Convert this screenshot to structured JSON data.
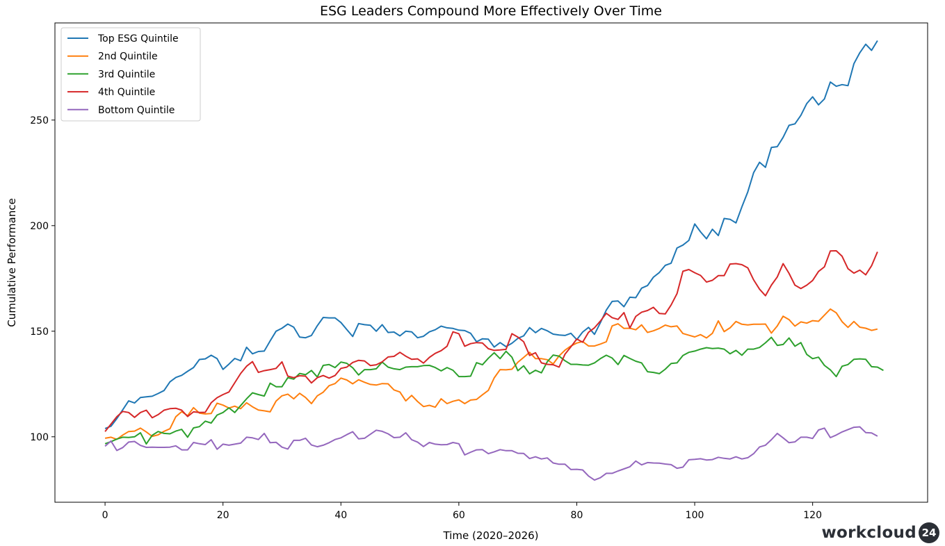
{
  "chart_data": {
    "type": "line",
    "title": "ESG Leaders Compound More Effectively Over Time",
    "xlabel": "Time (2020–2026)",
    "ylabel": "Cumulative Performance",
    "xlim": [
      -8.5,
      139.5
    ],
    "ylim": [
      69,
      296
    ],
    "xticks": [
      0,
      20,
      40,
      60,
      80,
      100,
      120
    ],
    "yticks": [
      100,
      150,
      200,
      250
    ],
    "legend_position": "top-left",
    "series": [
      {
        "name": "Top ESG Quintile",
        "color": "#1f77b4",
        "values": [
          103.9,
          105.0,
          108.6,
          112.8,
          117.0,
          116.0,
          118.6,
          118.9,
          119.2,
          120.5,
          121.9,
          126.0,
          128.1,
          129.1,
          131.0,
          132.8,
          136.6,
          136.9,
          138.6,
          137.0,
          131.9,
          134.4,
          137.1,
          136.0,
          142.4,
          139.3,
          140.4,
          140.6,
          145.4,
          150.0,
          151.4,
          153.4,
          151.9,
          147.2,
          146.9,
          148.0,
          152.6,
          156.5,
          156.3,
          156.3,
          154.1,
          150.8,
          147.5,
          153.6,
          153.1,
          152.8,
          150.0,
          153.1,
          149.4,
          149.6,
          147.8,
          150.0,
          149.7,
          146.9,
          147.6,
          149.7,
          150.7,
          152.4,
          151.6,
          151.3,
          150.5,
          150.3,
          149.0,
          145.0,
          146.4,
          146.2,
          142.5,
          144.6,
          142.7,
          144.3,
          146.6,
          147.8,
          151.7,
          149.3,
          151.3,
          150.2,
          148.6,
          148.2,
          148.0,
          149.0,
          146.0,
          149.6,
          151.8,
          148.5,
          154.0,
          160.0,
          164.1,
          164.3,
          161.6,
          166.1,
          165.9,
          170.4,
          171.6,
          175.6,
          177.8,
          181.2,
          182.2,
          189.4,
          190.8,
          193.0,
          200.8,
          197.0,
          193.8,
          198.3,
          195.3,
          203.4,
          203.0,
          201.3,
          208.9,
          216.0,
          225.1,
          230.0,
          227.6,
          237.0,
          237.4,
          241.8,
          247.5,
          248.2,
          252.2,
          257.8,
          261.0,
          257.2,
          260.0,
          268.0,
          266.0,
          266.8,
          266.3,
          276.7,
          281.9,
          285.9,
          283.0,
          287.6
        ]
      },
      {
        "name": "2nd Quintile",
        "color": "#ff7f0e",
        "values": [
          99.3,
          99.8,
          98.8,
          100.8,
          102.5,
          102.7,
          104.1,
          102.3,
          100.2,
          100.9,
          102.6,
          103.8,
          109.5,
          111.9,
          110.0,
          113.8,
          111.2,
          110.8,
          111.0,
          115.9,
          115.0,
          113.6,
          114.5,
          113.3,
          116.1,
          114.2,
          112.7,
          112.3,
          111.8,
          116.9,
          119.4,
          120.2,
          118.0,
          120.6,
          118.6,
          115.7,
          119.4,
          121.1,
          124.2,
          125.2,
          127.8,
          126.9,
          125.1,
          127.0,
          125.8,
          124.8,
          124.5,
          125.2,
          125.1,
          122.2,
          121.2,
          117.0,
          119.6,
          116.7,
          114.3,
          114.9,
          114.0,
          118.0,
          115.7,
          116.8,
          117.5,
          115.7,
          117.4,
          117.7,
          119.9,
          122.0,
          127.9,
          131.8,
          131.7,
          132.0,
          135.3,
          137.6,
          140.0,
          137.0,
          137.0,
          136.5,
          134.5,
          138.3,
          141.0,
          143.0,
          144.4,
          145.1,
          143.0,
          143.0,
          143.9,
          145.0,
          152.5,
          153.5,
          151.3,
          151.4,
          150.7,
          153.0,
          149.4,
          150.2,
          151.3,
          152.9,
          152.1,
          152.5,
          148.9,
          148.1,
          147.3,
          148.4,
          146.8,
          149.0,
          154.9,
          149.8,
          151.6,
          154.6,
          153.3,
          153.0,
          153.3,
          153.3,
          153.4,
          149.1,
          152.5,
          157.1,
          155.5,
          152.4,
          154.4,
          153.8,
          155.0,
          154.7,
          157.6,
          160.5,
          158.7,
          154.5,
          151.8,
          154.6,
          151.9,
          151.4,
          150.4,
          151.0
        ]
      },
      {
        "name": "3rd Quintile",
        "color": "#2ca02c",
        "values": [
          96.7,
          97.7,
          98.9,
          99.8,
          99.7,
          100.0,
          101.9,
          96.6,
          100.7,
          102.5,
          101.6,
          101.4,
          102.7,
          103.5,
          99.8,
          104.2,
          104.8,
          107.4,
          106.5,
          110.3,
          111.5,
          113.7,
          111.5,
          114.8,
          118.0,
          120.8,
          120.0,
          119.3,
          125.4,
          123.7,
          123.7,
          128.0,
          127.3,
          130.0,
          129.4,
          131.4,
          128.3,
          133.8,
          134.2,
          132.8,
          135.4,
          134.8,
          132.7,
          129.3,
          131.8,
          131.8,
          132.2,
          135.4,
          133.0,
          132.2,
          131.8,
          133.0,
          133.2,
          133.2,
          133.7,
          133.8,
          132.8,
          131.2,
          132.8,
          131.5,
          128.5,
          128.5,
          128.7,
          135.1,
          134.1,
          137.2,
          139.8,
          137.0,
          140.5,
          137.7,
          131.3,
          133.6,
          129.8,
          131.5,
          130.3,
          135.6,
          138.7,
          138.2,
          136.0,
          134.3,
          134.3,
          134.0,
          133.9,
          135.0,
          137.0,
          138.6,
          137.3,
          134.2,
          138.5,
          137.1,
          135.8,
          135.0,
          130.8,
          130.5,
          129.9,
          132.0,
          134.7,
          135.0,
          138.5,
          140.0,
          140.6,
          141.5,
          142.2,
          141.8,
          142.0,
          141.5,
          139.3,
          140.9,
          138.6,
          141.5,
          141.5,
          142.3,
          144.5,
          147.1,
          143.3,
          143.7,
          146.8,
          142.9,
          144.6,
          139.0,
          137.0,
          137.7,
          133.8,
          131.7,
          128.5,
          133.4,
          134.2,
          136.7,
          136.9,
          136.7,
          133.2,
          133.0,
          131.4
        ]
      },
      {
        "name": "4th Quintile",
        "color": "#d62728",
        "values": [
          102.5,
          106.0,
          109.5,
          112.0,
          111.5,
          109.2,
          111.5,
          112.6,
          109.0,
          110.5,
          112.6,
          113.3,
          113.5,
          112.6,
          109.6,
          111.8,
          111.5,
          111.6,
          116.1,
          118.5,
          120.0,
          121.2,
          125.6,
          130.0,
          133.4,
          135.6,
          130.5,
          131.3,
          131.8,
          132.4,
          135.5,
          128.7,
          128.0,
          128.9,
          128.7,
          125.5,
          128.0,
          129.0,
          127.8,
          129.0,
          132.4,
          133.0,
          135.2,
          136.2,
          135.9,
          133.7,
          134.1,
          135.5,
          137.8,
          138.1,
          140.0,
          138.2,
          136.7,
          136.9,
          134.9,
          137.6,
          139.5,
          140.8,
          142.9,
          149.7,
          148.8,
          142.9,
          144.1,
          144.6,
          144.4,
          141.7,
          140.9,
          141.1,
          141.4,
          148.8,
          147.2,
          145.0,
          138.5,
          139.8,
          135.0,
          134.3,
          134.1,
          133.0,
          139.1,
          142.6,
          146.3,
          144.8,
          149.5,
          151.6,
          154.8,
          158.5,
          156.4,
          155.6,
          158.8,
          151.5,
          157.0,
          159.0,
          159.8,
          161.3,
          158.4,
          158.2,
          162.4,
          167.8,
          178.4,
          179.2,
          177.7,
          176.4,
          173.3,
          174.1,
          176.3,
          176.3,
          181.8,
          182.0,
          181.5,
          180.0,
          174.3,
          169.9,
          166.8,
          171.8,
          175.7,
          182.0,
          177.4,
          171.8,
          170.2,
          171.8,
          174.0,
          178.3,
          180.5,
          188.0,
          188.1,
          185.5,
          179.6,
          177.5,
          178.9,
          176.7,
          181.0,
          187.6
        ]
      },
      {
        "name": "Bottom Quintile",
        "color": "#9467bd",
        "values": [
          95.5,
          98.0,
          93.5,
          94.9,
          97.5,
          97.8,
          95.9,
          95.0,
          95.1,
          95.0,
          95.0,
          95.1,
          95.7,
          93.8,
          93.8,
          97.3,
          96.7,
          96.3,
          98.6,
          94.1,
          96.5,
          96.0,
          96.5,
          97.0,
          99.8,
          99.5,
          98.7,
          101.6,
          97.2,
          97.4,
          95.1,
          94.2,
          98.3,
          98.3,
          99.3,
          96.1,
          95.3,
          96.0,
          97.2,
          98.7,
          99.5,
          101.0,
          102.4,
          99.0,
          99.3,
          101.2,
          103.1,
          102.6,
          101.4,
          99.6,
          99.8,
          101.9,
          98.6,
          97.5,
          95.4,
          97.3,
          96.5,
          96.2,
          96.3,
          97.3,
          96.7,
          91.4,
          92.7,
          93.8,
          93.9,
          92.0,
          92.9,
          93.9,
          93.4,
          93.4,
          92.2,
          92.1,
          89.7,
          90.5,
          89.5,
          90.0,
          87.6,
          87.0,
          87.0,
          84.5,
          84.6,
          84.3,
          81.4,
          79.5,
          80.6,
          82.7,
          82.7,
          83.8,
          84.8,
          85.8,
          88.5,
          86.7,
          87.8,
          87.6,
          87.5,
          87.1,
          86.8,
          85.1,
          85.6,
          89.1,
          89.3,
          89.6,
          89.0,
          89.2,
          90.3,
          89.8,
          89.5,
          90.5,
          89.5,
          90.1,
          92.0,
          95.2,
          96.0,
          98.6,
          101.6,
          99.5,
          97.2,
          97.6,
          99.8,
          99.8,
          99.2,
          103.2,
          104.1,
          99.6,
          100.8,
          102.3,
          103.4,
          104.5,
          104.7,
          102.0,
          101.8,
          100.3
        ]
      }
    ]
  },
  "logo": {
    "text": "workcloud",
    "badge": "24"
  }
}
